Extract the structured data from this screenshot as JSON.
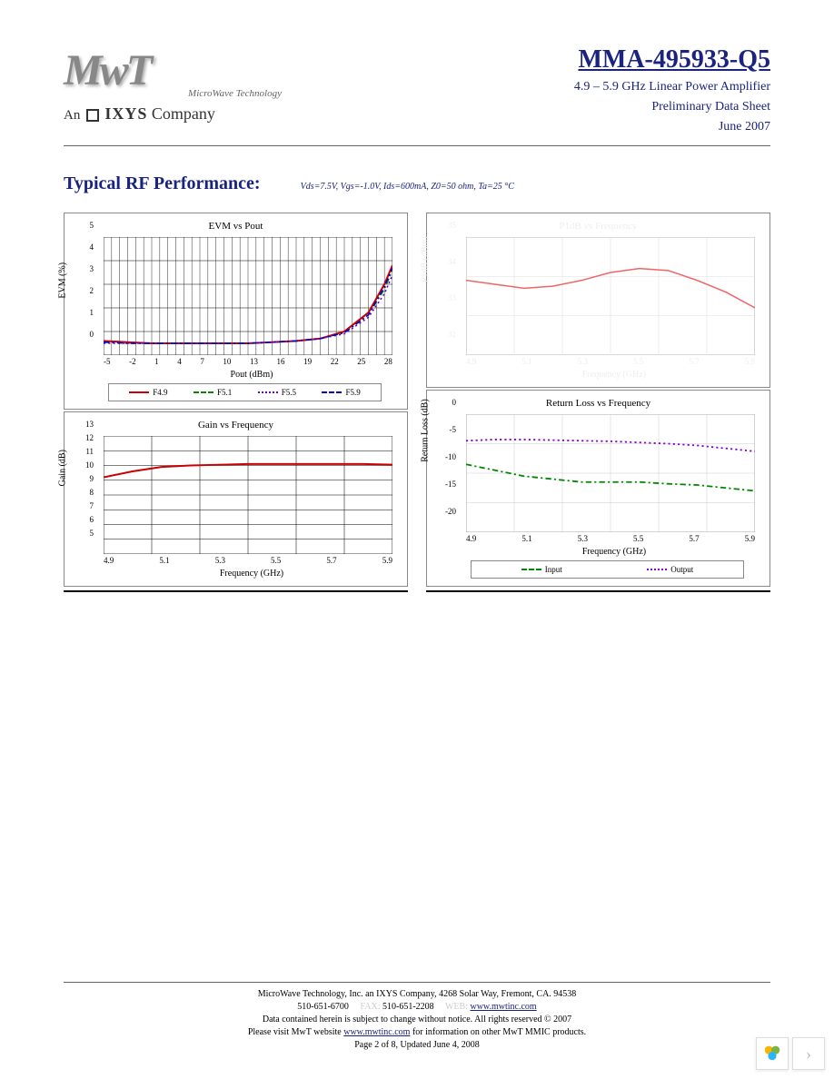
{
  "header": {
    "logo_text": "MwT",
    "logo_subtitle": "MicroWave Technology",
    "ixys_prefix": "An",
    "ixys_name": "IXYS",
    "ixys_suffix": "Company",
    "part_number": "MMA-495933-Q5",
    "description_line1": "4.9 – 5.9 GHz Linear Power Amplifier",
    "description_line2": "Preliminary Data Sheet",
    "description_line3": "June 2007"
  },
  "section": {
    "title": "Typical RF Performance:",
    "conditions": "Vds=7.5V, Vgs=-1.0V, Ids=600mA, Z0=50 ohm, Ta=25 °C"
  },
  "charts": {
    "evm": {
      "title": "EVM vs Pout",
      "ylabel": "EVM (%)",
      "xlabel": "Pout (dBm)",
      "ylim": [
        0,
        5
      ],
      "ytick_step": 1,
      "xticks": [
        "-5",
        "-2",
        "1",
        "4",
        "7",
        "10",
        "13",
        "16",
        "19",
        "22",
        "25",
        "28"
      ],
      "grid_color": "#000000",
      "background": "#ffffff",
      "series": [
        {
          "name": "F4.9",
          "color": "#cc0000",
          "style": "solid",
          "width": 2,
          "x": [
            -5,
            -2,
            1,
            4,
            7,
            10,
            13,
            16,
            19,
            22,
            25,
            28,
            30,
            31
          ],
          "y": [
            0.6,
            0.55,
            0.5,
            0.5,
            0.5,
            0.5,
            0.5,
            0.55,
            0.6,
            0.7,
            1.0,
            1.8,
            3.0,
            3.8
          ]
        },
        {
          "name": "F5.1",
          "color": "#008800",
          "style": "dashdot",
          "width": 1.5,
          "x": [
            -5,
            -2,
            1,
            4,
            7,
            10,
            13,
            16,
            19,
            22,
            25,
            28,
            30,
            31
          ],
          "y": [
            0.55,
            0.5,
            0.5,
            0.5,
            0.5,
            0.5,
            0.5,
            0.55,
            0.6,
            0.7,
            0.95,
            1.7,
            2.8,
            3.6
          ]
        },
        {
          "name": "F5.5",
          "color": "#6600cc",
          "style": "dotted",
          "width": 1.5,
          "x": [
            -5,
            -2,
            1,
            4,
            7,
            10,
            13,
            16,
            19,
            22,
            25,
            28,
            30,
            31
          ],
          "y": [
            0.5,
            0.5,
            0.5,
            0.5,
            0.5,
            0.5,
            0.5,
            0.55,
            0.6,
            0.7,
            0.9,
            1.6,
            2.6,
            3.4
          ]
        },
        {
          "name": "F5.9",
          "color": "#0000cc",
          "style": "dashdot",
          "width": 1.5,
          "x": [
            -5,
            -2,
            1,
            4,
            7,
            10,
            13,
            16,
            19,
            22,
            25,
            28,
            30,
            31
          ],
          "y": [
            0.55,
            0.5,
            0.5,
            0.5,
            0.5,
            0.5,
            0.5,
            0.55,
            0.6,
            0.7,
            0.95,
            1.7,
            2.9,
            3.7
          ]
        }
      ],
      "legend": [
        {
          "label": "F4.9",
          "color": "#cc0000",
          "style": "solid"
        },
        {
          "label": "F5.1",
          "color": "#008800",
          "style": "dashdot"
        },
        {
          "label": "F5.5",
          "color": "#6600cc",
          "style": "dotted"
        },
        {
          "label": "F5.9",
          "color": "#0000cc",
          "style": "dashdot"
        }
      ]
    },
    "p1db": {
      "title": "P1dB vs Frequency",
      "ylabel": "P1dB (dBm)",
      "xlabel": "Frequency (GHz)",
      "ylim": [
        32,
        35
      ],
      "ytick_step": 1,
      "xticks": [
        "4.9",
        "5.1",
        "5.3",
        "5.5",
        "5.7",
        "5.9"
      ],
      "grid_color": "#dddddd",
      "faint": true,
      "series": [
        {
          "name": "P1dB",
          "color": "#ee6666",
          "style": "solid",
          "width": 1.5,
          "x": [
            4.9,
            5.0,
            5.1,
            5.2,
            5.3,
            5.4,
            5.5,
            5.6,
            5.7,
            5.8,
            5.9
          ],
          "y": [
            33.9,
            33.8,
            33.7,
            33.75,
            33.9,
            34.1,
            34.2,
            34.15,
            33.9,
            33.6,
            33.2
          ]
        }
      ]
    },
    "gain": {
      "title": "Gain vs Frequency",
      "ylabel": "Gain (dB)",
      "xlabel": "Frequency (GHz)",
      "ylim": [
        5,
        13
      ],
      "ytick_step": 1,
      "xticks": [
        "4.9",
        "5.1",
        "5.3",
        "5.5",
        "5.7",
        "5.9"
      ],
      "grid_color": "#000000",
      "series": [
        {
          "name": "Gain",
          "color": "#cc0000",
          "style": "solid",
          "width": 2,
          "x": [
            4.9,
            5.0,
            5.1,
            5.2,
            5.3,
            5.4,
            5.5,
            5.6,
            5.7,
            5.8,
            5.9
          ],
          "y": [
            10.2,
            10.6,
            10.9,
            11.0,
            11.05,
            11.1,
            11.1,
            11.1,
            11.1,
            11.1,
            11.05
          ]
        }
      ]
    },
    "rloss": {
      "title": "Return Loss vs Frequency",
      "ylabel": "Return Loss (dB)",
      "xlabel": "Frequency (GHz)",
      "ylim": [
        -20,
        0
      ],
      "ytick_step": 5,
      "xticks": [
        "4.9",
        "5.1",
        "5.3",
        "5.5",
        "5.7",
        "5.9"
      ],
      "grid_color": "#cccccc",
      "series": [
        {
          "name": "Input",
          "color": "#008800",
          "style": "dashdot",
          "width": 1.8,
          "x": [
            4.9,
            5.0,
            5.1,
            5.2,
            5.3,
            5.4,
            5.5,
            5.6,
            5.7,
            5.8,
            5.9
          ],
          "y": [
            -8.5,
            -9.5,
            -10.5,
            -11.0,
            -11.5,
            -11.5,
            -11.5,
            -11.8,
            -12.0,
            -12.5,
            -13.0
          ]
        },
        {
          "name": "Output",
          "color": "#8800cc",
          "style": "dotted",
          "width": 1.8,
          "x": [
            4.9,
            5.0,
            5.1,
            5.2,
            5.3,
            5.4,
            5.5,
            5.6,
            5.7,
            5.8,
            5.9
          ],
          "y": [
            -4.5,
            -4.3,
            -4.3,
            -4.4,
            -4.5,
            -4.6,
            -4.8,
            -5.0,
            -5.3,
            -5.8,
            -6.3
          ]
        }
      ],
      "legend": [
        {
          "label": "Input",
          "color": "#008800",
          "style": "dashdot"
        },
        {
          "label": "Output",
          "color": "#8800cc",
          "style": "dotted"
        }
      ]
    }
  },
  "footer": {
    "line1": "MicroWave Technology, Inc. an IXYS Company, 4268 Solar Way, Fremont, CA. 94538",
    "phone_label": "",
    "phone": "510-651-6700",
    "fax_label": "FAX:",
    "fax": "510-651-2208",
    "web_label": "WEB:",
    "web": "www.mwtinc.com",
    "line3": "Data contained herein is subject to change without notice. All rights reserved © 2007",
    "line4a": "Please visit MwT website",
    "line4_link": "www.mwtinc.com",
    "line4b": "for information on other MwT MMIC products.",
    "line5": "Page 2 of 8, Updated June 4, 2008"
  }
}
